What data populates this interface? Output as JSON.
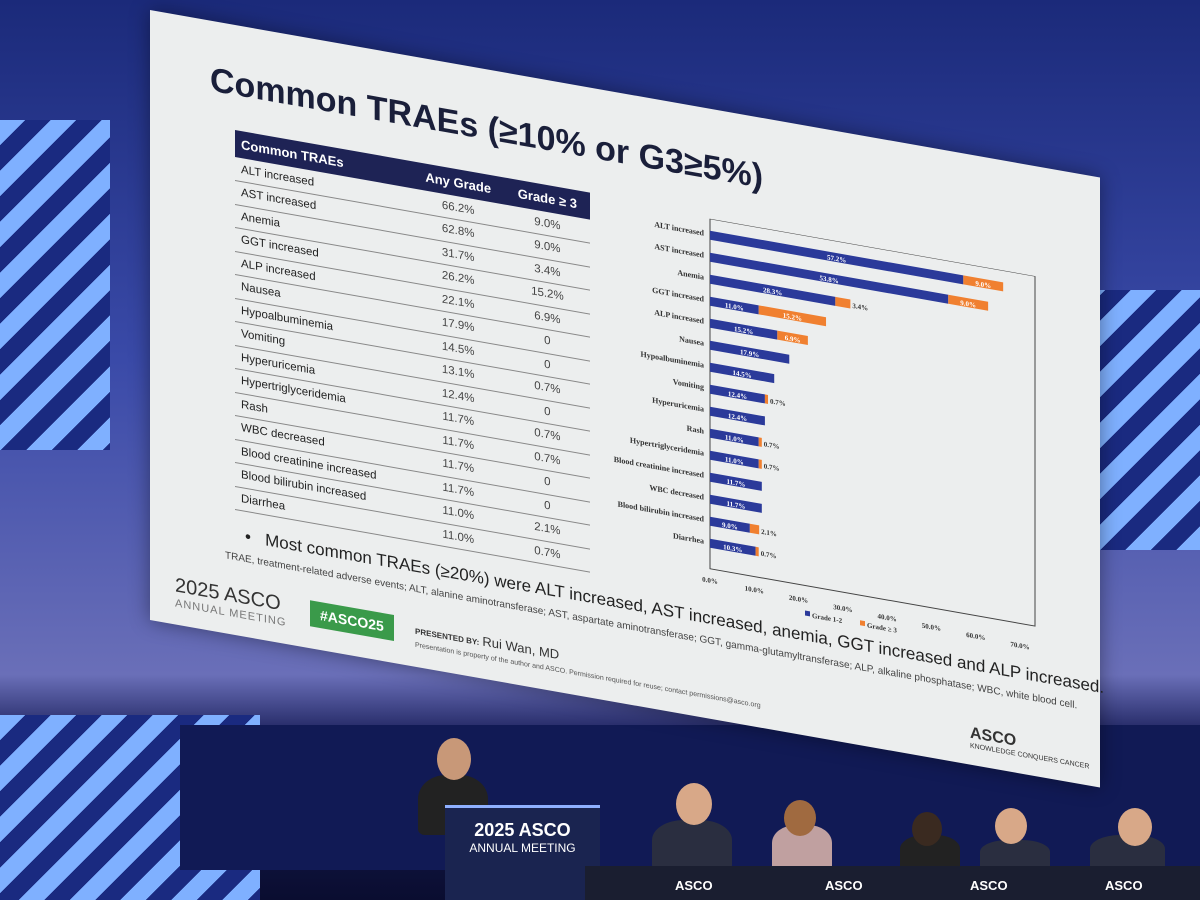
{
  "slide": {
    "title": "Common TRAEs (≥10% or G3≥5%)",
    "table": {
      "headers": [
        "Common TRAEs",
        "Any Grade",
        "Grade ≥ 3"
      ],
      "rows": [
        [
          "ALT increased",
          "66.2%",
          "9.0%"
        ],
        [
          "AST increased",
          "62.8%",
          "9.0%"
        ],
        [
          "Anemia",
          "31.7%",
          "3.4%"
        ],
        [
          "GGT increased",
          "26.2%",
          "15.2%"
        ],
        [
          "ALP increased",
          "22.1%",
          "6.9%"
        ],
        [
          "Nausea",
          "17.9%",
          "0"
        ],
        [
          "Hypoalbuminemia",
          "14.5%",
          "0"
        ],
        [
          "Vomiting",
          "13.1%",
          "0.7%"
        ],
        [
          "Hyperuricemia",
          "12.4%",
          "0"
        ],
        [
          "Hypertriglyceridemia",
          "11.7%",
          "0.7%"
        ],
        [
          "Rash",
          "11.7%",
          "0.7%"
        ],
        [
          "WBC decreased",
          "11.7%",
          "0"
        ],
        [
          "Blood creatinine increased",
          "11.7%",
          "0"
        ],
        [
          "Blood bilirubin increased",
          "11.0%",
          "2.1%"
        ],
        [
          "Diarrhea",
          "11.0%",
          "0.7%"
        ]
      ]
    },
    "bullet": "Most common TRAEs (≥20%) were ALT increased, AST increased, anemia, GGT increased and ALP increased.",
    "footnote": "TRAE, treatment-related adverse events; ALT, alanine aminotransferase; AST, aspartate aminotransferase; GGT, gamma-glutamyltransferase; ALP, alkaline phosphatase; WBC, white blood cell.",
    "logo_year": "2025 ASCO",
    "logo_sub": "ANNUAL MEETING",
    "hashtag": "#ASCO25",
    "presented_by_label": "PRESENTED BY:",
    "presenter": "Rui Wan, MD",
    "property_note": "Presentation is property of the author and ASCO. Permission required for reuse; contact permissions@asco.org",
    "asco_logo": "ASCO",
    "asco_tag": "KNOWLEDGE CONQUERS CANCER"
  },
  "chart_data": {
    "type": "bar",
    "orientation": "horizontal",
    "stacked": true,
    "categories": [
      "ALT increased",
      "AST increased",
      "Anemia",
      "GGT increased",
      "ALP increased",
      "Nausea",
      "Hypoalbuminemia",
      "Vomiting",
      "Hyperuricemia",
      "Rash",
      "Hypertriglyceridemia",
      "Blood creatinine increased",
      "WBC decreased",
      "Blood bilirubin increased",
      "Diarrhea"
    ],
    "series": [
      {
        "name": "Grade 1-2",
        "color": "#2b3a9a",
        "values": [
          57.2,
          53.8,
          28.3,
          11.0,
          15.2,
          17.9,
          14.5,
          12.4,
          12.4,
          11.0,
          11.0,
          11.7,
          11.7,
          9.0,
          10.3
        ]
      },
      {
        "name": "Grade ≥ 3",
        "color": "#f08030",
        "values": [
          9.0,
          9.0,
          3.4,
          15.2,
          6.9,
          null,
          null,
          0.7,
          null,
          0.7,
          0.7,
          null,
          null,
          2.1,
          0.7
        ]
      }
    ],
    "xticks": [
      "0.0%",
      "10.0%",
      "20.0%",
      "30.0%",
      "40.0%",
      "50.0%",
      "60.0%",
      "70.0%"
    ],
    "xlim": [
      0,
      70
    ],
    "legend": "bottom"
  },
  "stage": {
    "podium_year": "2025 ASCO",
    "podium_sub": "ANNUAL MEETING",
    "table_logo": "ASCO"
  }
}
